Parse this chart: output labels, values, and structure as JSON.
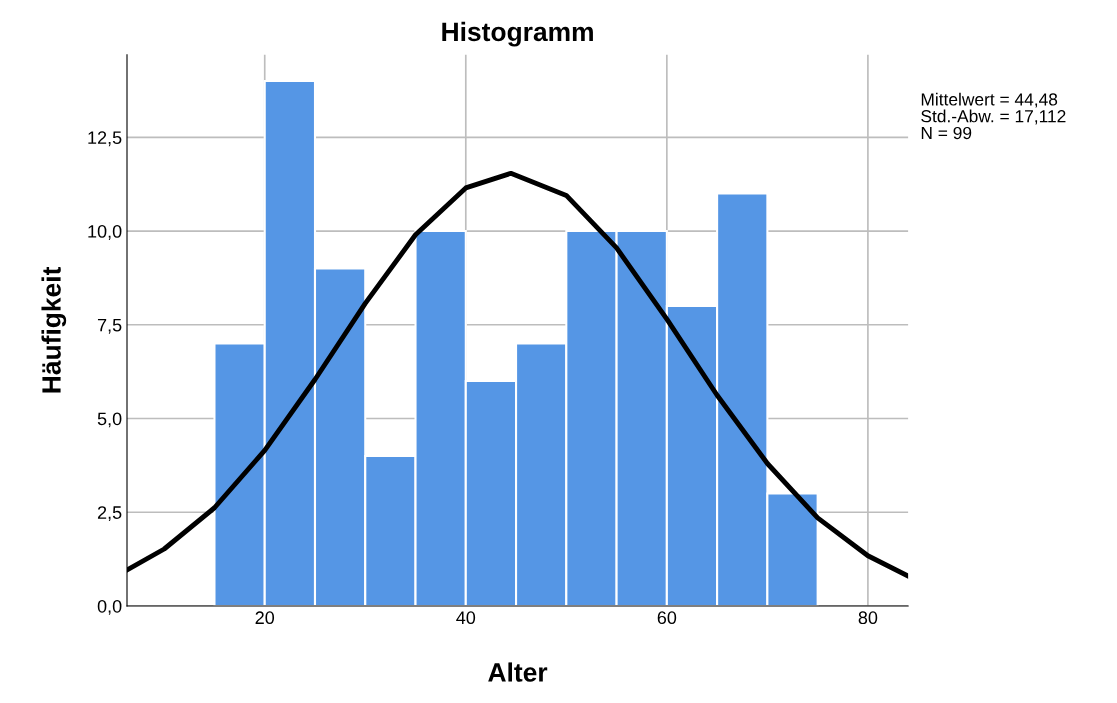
{
  "chart_data": {
    "type": "histogram",
    "title": "Histogramm",
    "xlabel": "Alter",
    "ylabel": "Häufigkeit",
    "bins": [
      15,
      20,
      25,
      30,
      35,
      40,
      45,
      50,
      55,
      60,
      65,
      70,
      75
    ],
    "values": [
      7,
      14,
      9,
      4,
      10,
      6,
      7,
      10,
      10,
      8,
      11,
      3
    ],
    "color": "#5596e5",
    "series": [
      {
        "type": "line",
        "color": "#000000",
        "x": [
          6.3,
          10,
          15,
          20,
          25,
          30,
          35,
          40,
          44.48,
          50,
          55,
          60,
          65,
          70,
          75,
          80,
          84
        ],
        "values": [
          0.96,
          1.52,
          2.62,
          4.15,
          6.04,
          8.07,
          9.9,
          11.15,
          11.54,
          10.95,
          9.55,
          7.65,
          5.62,
          3.8,
          2.35,
          1.34,
          0.8
        ]
      }
    ],
    "xlim": [
      6.3,
      84
    ],
    "ylim": [
      0,
      14.7
    ],
    "xticks": [
      20,
      40,
      60,
      80
    ],
    "yticks": [
      {
        "value": 0,
        "label": "0,0"
      },
      {
        "value": 2.5,
        "label": "2,5"
      },
      {
        "value": 5,
        "label": "5,0"
      },
      {
        "value": 7.5,
        "label": "7,5"
      },
      {
        "value": 10,
        "label": "10,0"
      },
      {
        "value": 12.5,
        "label": "12,5"
      }
    ],
    "grid": true,
    "annotations": [
      "Mittelwert = 44,48",
      "Std.-Abw. = 17,112",
      "N = 99"
    ]
  }
}
